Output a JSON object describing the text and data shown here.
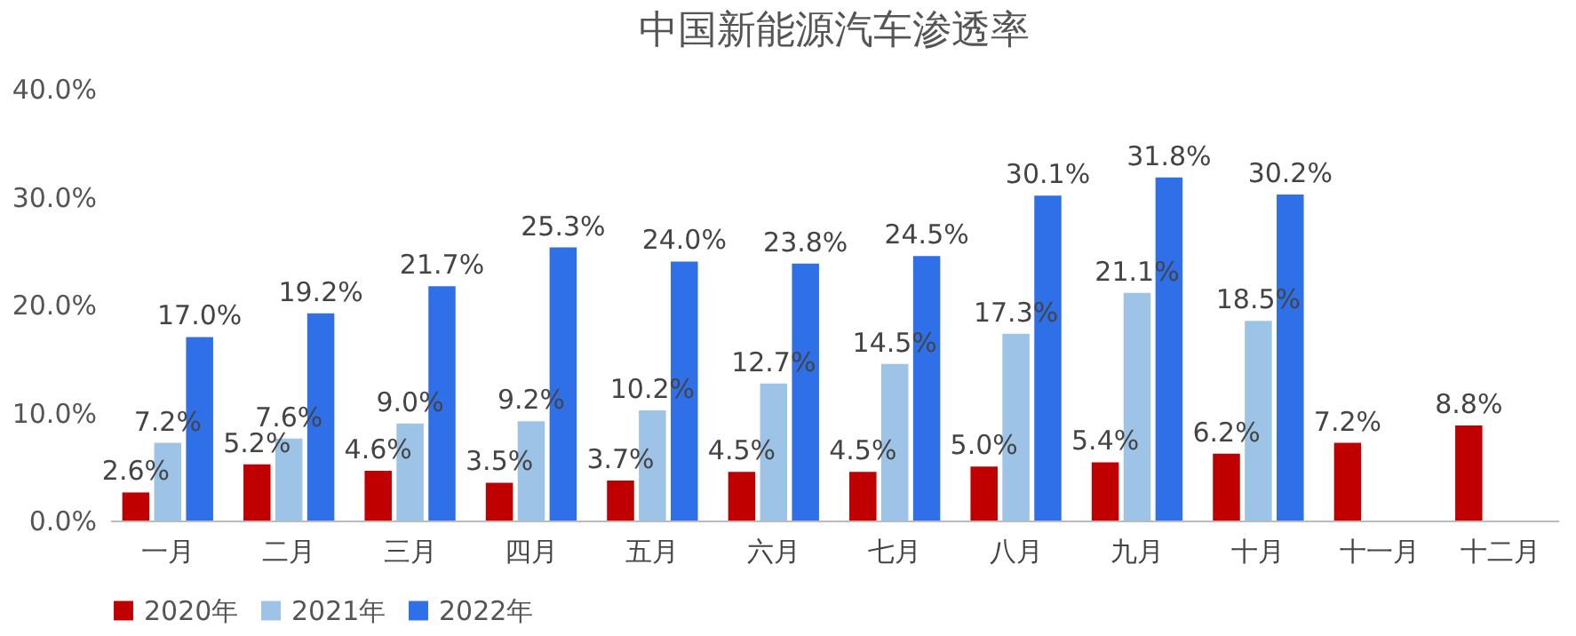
{
  "chart_data": {
    "type": "bar",
    "title": "中国新能源汽车渗透率",
    "categories": [
      "一月",
      "二月",
      "三月",
      "四月",
      "五月",
      "六月",
      "七月",
      "八月",
      "九月",
      "十月",
      "十一月",
      "十二月"
    ],
    "series": [
      {
        "name": "2020年",
        "color": "#c00000",
        "values": [
          2.6,
          5.2,
          4.6,
          3.5,
          3.7,
          4.5,
          4.5,
          5.0,
          5.4,
          6.2,
          7.2,
          8.8
        ],
        "value_labels": [
          "2.6%",
          "5.2%",
          "4.6%",
          "3.5%",
          "3.7%",
          "4.5%",
          "4.5%",
          "5.0%",
          "5.4%",
          "6.2%",
          "7.2%",
          "8.8%"
        ]
      },
      {
        "name": "2021年",
        "color": "#9dc3e6",
        "values": [
          7.2,
          7.6,
          9.0,
          9.2,
          10.2,
          12.7,
          14.5,
          17.3,
          21.1,
          18.5,
          null,
          null
        ],
        "value_labels": [
          "7.2%",
          "7.6%",
          "9.0%",
          "9.2%",
          "10.2%",
          "12.7%",
          "14.5%",
          "17.3%",
          "21.1%",
          "18.5%",
          null,
          null
        ]
      },
      {
        "name": "2022年",
        "color": "#2f6fe8",
        "values": [
          17.0,
          19.2,
          21.7,
          25.3,
          24.0,
          23.8,
          24.5,
          30.1,
          31.8,
          30.2,
          null,
          null
        ],
        "value_labels": [
          "17.0%",
          "19.2%",
          "21.7%",
          "25.3%",
          "24.0%",
          "23.8%",
          "24.5%",
          "30.1%",
          "31.8%",
          "30.2%",
          null,
          null
        ]
      }
    ],
    "ylim": [
      0,
      40
    ],
    "yticks": [
      {
        "value": 0,
        "label": "0.0%"
      },
      {
        "value": 10,
        "label": "10.0%"
      },
      {
        "value": 20,
        "label": "20.0%"
      },
      {
        "value": 30,
        "label": "30.0%"
      },
      {
        "value": 40,
        "label": "40.0%"
      }
    ],
    "grid": false,
    "legend": "bottom"
  }
}
